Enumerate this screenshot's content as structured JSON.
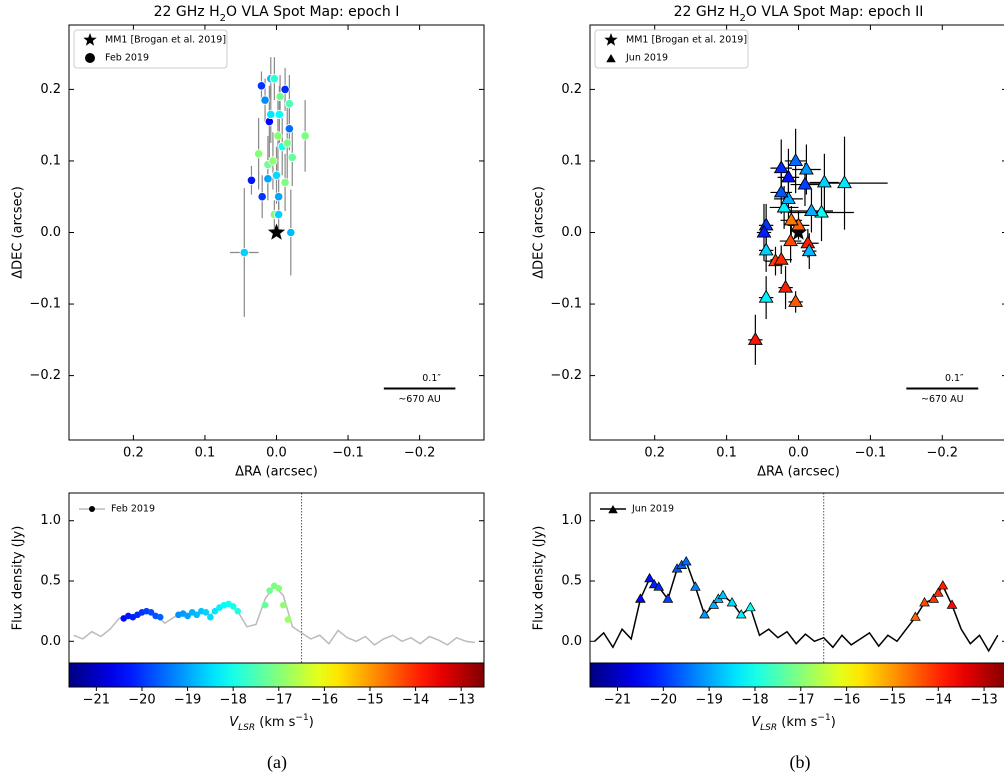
{
  "chart_data": [
    {
      "type": "scatter",
      "title": [
        "22 GHz H",
        "2",
        "O VLA Spot Map: epoch I"
      ],
      "xlabel": "ΔRA (arcsec)",
      "ylabel": "ΔDEC (arcsec)",
      "xlim": [
        0.29,
        -0.29
      ],
      "ylim": [
        -0.29,
        0.29
      ],
      "xticks": [
        0.2,
        0.1,
        {
          "value": 0,
          "label": "0.0"
        },
        {
          "value": -0.1,
          "label": "−0.1"
        },
        {
          "value": -0.2,
          "label": "−0.2"
        }
      ],
      "yticks": [
        {
          "value": -0.2,
          "label": "−0.2"
        },
        {
          "value": -0.1,
          "label": "−0.1"
        },
        {
          "value": 0,
          "label": "0.0"
        },
        0.1,
        0.2
      ],
      "legend": "upper left",
      "colormap": "jet",
      "clim": [
        -21.6,
        -12.5
      ],
      "series": [
        {
          "name": "MM1 [Brogan et al. 2019]",
          "marker": "star",
          "color": "#000000",
          "x": [
            0
          ],
          "y": [
            0
          ]
        },
        {
          "name": "Feb 2019",
          "marker": "circle",
          "errorbar_color": "#888888",
          "x": [
            0.045,
            0.035,
            0.021,
            0.016,
            0.008,
            0.003,
            -0.005,
            -0.012,
            -0.018,
            0.025,
            0.012,
            0.005,
            -0.002,
            -0.008,
            -0.015,
            -0.022,
            -0.04,
            0.01,
            -0.004,
            0.0,
            0.012,
            -0.012,
            0.02,
            -0.003,
            0.003,
            -0.003,
            -0.02,
            0.008,
            -0.018
          ],
          "y": [
            -0.028,
            0.073,
            0.205,
            0.185,
            0.215,
            0.215,
            0.19,
            0.2,
            0.18,
            0.11,
            0.095,
            0.1,
            0.135,
            0.12,
            0.125,
            0.105,
            0.135,
            0.155,
            0.165,
            0.08,
            0.075,
            0.07,
            0.05,
            0.05,
            0.025,
            0.025,
            0.0,
            0.165,
            0.145
          ],
          "velocity": [
            -18.6,
            -20.3,
            -20.0,
            -19.2,
            -18.8,
            -17.8,
            -17.2,
            -20.1,
            -17.5,
            -17.0,
            -17.2,
            -16.9,
            -17.0,
            -18.0,
            -17.1,
            -17.3,
            -17.1,
            -20.5,
            -18.2,
            -18.5,
            -19.0,
            -17.1,
            -20.0,
            -19.0,
            -17.0,
            -18.6,
            -18.8,
            -18.4,
            -19.5
          ],
          "x_err": [
            0.02,
            0.005,
            0.005,
            0.005,
            0.005,
            0.005,
            0.005,
            0.005,
            0.005,
            0.005,
            0.005,
            0.005,
            0.005,
            0.005,
            0.005,
            0.005,
            0.005,
            0.005,
            0.005,
            0.005,
            0.005,
            0.005,
            0.005,
            0.005,
            0.005,
            0.005,
            0.005,
            0.005,
            0.005
          ],
          "y_err": [
            0.09,
            0.02,
            0.02,
            0.03,
            0.03,
            0.03,
            0.03,
            0.03,
            0.04,
            0.05,
            0.04,
            0.04,
            0.05,
            0.04,
            0.05,
            0.04,
            0.05,
            0.05,
            0.04,
            0.04,
            0.03,
            0.04,
            0.03,
            0.03,
            0.02,
            0.02,
            0.06,
            0.04,
            0.03
          ]
        }
      ],
      "scale_bar": {
        "x": [
          -0.15,
          -0.25
        ],
        "y": -0.218,
        "label": "0.1″",
        "sublabel": "~670 AU"
      }
    },
    {
      "type": "line",
      "ylabel": "Flux density (Jy)",
      "xlim": [
        -21.6,
        -12.5
      ],
      "ylim": [
        -0.18,
        1.23
      ],
      "yticks": [
        {
          "value": 0,
          "label": "0.0"
        },
        0.5,
        {
          "value": 1,
          "label": "1.0"
        }
      ],
      "legend": "upper left",
      "vline": -16.5,
      "series": [
        {
          "name": "Feb 2019",
          "color": "#bbbbbb",
          "marker": "circle",
          "x": [
            -21.5,
            -21.3,
            -21.1,
            -20.9,
            -20.7,
            -20.5,
            -20.3,
            -20.1,
            -19.9,
            -19.7,
            -19.5,
            -19.3,
            -19.1,
            -18.9,
            -18.7,
            -18.5,
            -18.3,
            -18.1,
            -17.9,
            -17.7,
            -17.5,
            -17.3,
            -17.1,
            -16.9,
            -16.7,
            -16.5,
            -16.3,
            -16.1,
            -15.9,
            -15.7,
            -15.5,
            -15.3,
            -15.1,
            -14.9,
            -14.7,
            -14.5,
            -14.3,
            -14.1,
            -13.9,
            -13.7,
            -13.5,
            -13.3,
            -13.1,
            -12.9,
            -12.7
          ],
          "values": [
            0.05,
            0.02,
            0.08,
            0.04,
            0.1,
            0.19,
            0.21,
            0.2,
            0.24,
            0.22,
            0.15,
            0.2,
            0.22,
            0.23,
            0.24,
            0.22,
            0.28,
            0.3,
            0.25,
            0.12,
            0.14,
            0.35,
            0.46,
            0.38,
            0.12,
            0.07,
            0.02,
            0.05,
            -0.02,
            0.09,
            0.03,
            0.0,
            0.04,
            -0.03,
            0.02,
            0.05,
            0.0,
            0.03,
            -0.02,
            0.04,
            0.01,
            -0.03,
            0.03,
            0.0,
            -0.01
          ]
        }
      ],
      "spots": {
        "x": [
          -20.4,
          -20.3,
          -20.2,
          -20.1,
          -20.0,
          -19.9,
          -19.8,
          -19.7,
          -19.6,
          -19.2,
          -19.1,
          -19.0,
          -18.9,
          -18.8,
          -18.7,
          -18.6,
          -18.5,
          -18.4,
          -18.3,
          -18.2,
          -18.1,
          -18.0,
          -17.9,
          -17.3,
          -17.2,
          -17.1,
          -17.0,
          -16.9,
          -16.8
        ],
        "values": [
          0.19,
          0.21,
          0.2,
          0.22,
          0.24,
          0.25,
          0.24,
          0.21,
          0.2,
          0.22,
          0.23,
          0.21,
          0.24,
          0.22,
          0.25,
          0.24,
          0.2,
          0.25,
          0.28,
          0.3,
          0.31,
          0.29,
          0.25,
          0.3,
          0.42,
          0.46,
          0.44,
          0.3,
          0.18
        ]
      },
      "colorbar": {
        "colormap": "jet",
        "clim": [
          -21.6,
          -12.5
        ],
        "label": [
          "V",
          "LSR",
          " (km s",
          "−1",
          ")"
        ],
        "ticks": [
          {
            "value": -21,
            "label": "−21"
          },
          {
            "value": -20,
            "label": "−20"
          },
          {
            "value": -19,
            "label": "−19"
          },
          {
            "value": -18,
            "label": "−18"
          },
          {
            "value": -17,
            "label": "−17"
          },
          {
            "value": -16,
            "label": "−16"
          },
          {
            "value": -15,
            "label": "−15"
          },
          {
            "value": -14,
            "label": "−14"
          },
          {
            "value": -13,
            "label": "−13"
          }
        ]
      }
    },
    {
      "type": "scatter",
      "title": [
        "22 GHz H",
        "2",
        "O VLA Spot Map: epoch II"
      ],
      "xlabel": "ΔRA (arcsec)",
      "ylabel": "ΔDEC (arcsec)",
      "xlim": [
        0.29,
        -0.29
      ],
      "ylim": [
        -0.29,
        0.29
      ],
      "xticks": [
        0.2,
        0.1,
        {
          "value": 0,
          "label": "0.0"
        },
        {
          "value": -0.1,
          "label": "−0.1"
        },
        {
          "value": -0.2,
          "label": "−0.2"
        }
      ],
      "yticks": [
        {
          "value": -0.2,
          "label": "−0.2"
        },
        {
          "value": -0.1,
          "label": "−0.1"
        },
        {
          "value": 0,
          "label": "0.0"
        },
        0.1,
        0.2
      ],
      "legend": "upper left",
      "colormap": "jet",
      "clim": [
        -21.6,
        -12.5
      ],
      "series": [
        {
          "name": "MM1 [Brogan et al. 2019]",
          "marker": "star",
          "color": "#000000",
          "x": [
            0
          ],
          "y": [
            0
          ]
        },
        {
          "name": "Jun 2019",
          "marker": "triangle",
          "errorbar_color": "#000000",
          "x": [
            0.06,
            0.018,
            0.045,
            0.004,
            0.045,
            0.048,
            0.032,
            0.024,
            0.045,
            0.011,
            0.0,
            -0.013,
            -0.015,
            0.02,
            0.014,
            0.024,
            0.014,
            0.024,
            0.004,
            -0.009,
            -0.011,
            -0.036,
            -0.064,
            -0.032,
            -0.018,
            0.01
          ],
          "y": [
            -0.15,
            -0.077,
            -0.091,
            -0.097,
            0.01,
            0.0,
            -0.04,
            -0.038,
            -0.025,
            -0.012,
            0.01,
            -0.015,
            -0.026,
            0.035,
            0.047,
            0.056,
            0.077,
            0.09,
            0.1,
            0.067,
            0.088,
            0.07,
            0.069,
            0.028,
            0.03,
            0.017
          ],
          "velocity": [
            -13.8,
            -13.9,
            -18.3,
            -14.4,
            -20.0,
            -20.2,
            -14.2,
            -14.0,
            -18.6,
            -14.3,
            -14.5,
            -13.9,
            -18.8,
            -18.3,
            -18.9,
            -19.7,
            -20.3,
            -20.1,
            -19.5,
            -19.9,
            -19.1,
            -18.6,
            -18.4,
            -18.1,
            -18.9,
            -14.7
          ],
          "x_err": [
            0.01,
            0.01,
            0.01,
            0.01,
            0.01,
            0.01,
            0.015,
            0.015,
            0.01,
            0.015,
            0.015,
            0.015,
            0.01,
            0.02,
            0.02,
            0.015,
            0.015,
            0.015,
            0.015,
            0.02,
            0.02,
            0.02,
            0.06,
            0.045,
            0.03,
            0.015
          ],
          "y_err": [
            0.035,
            0.03,
            0.03,
            0.015,
            0.03,
            0.04,
            0.02,
            0.02,
            0.03,
            0.03,
            0.02,
            0.02,
            0.025,
            0.03,
            0.03,
            0.03,
            0.04,
            0.04,
            0.045,
            0.03,
            0.035,
            0.04,
            0.065,
            0.04,
            0.03,
            0.02
          ]
        }
      ],
      "scale_bar": {
        "x": [
          -0.15,
          -0.25
        ],
        "y": -0.218,
        "label": "0.1″",
        "sublabel": "~670 AU"
      }
    },
    {
      "type": "line",
      "ylabel": "Flux density (Jy)",
      "xlim": [
        -21.6,
        -12.5
      ],
      "ylim": [
        -0.18,
        1.23
      ],
      "yticks": [
        {
          "value": 0,
          "label": "0.0"
        },
        0.5,
        {
          "value": 1,
          "label": "1.0"
        }
      ],
      "legend": "upper left",
      "vline": -16.5,
      "series": [
        {
          "name": "Jun 2019",
          "color": "#000000",
          "marker": "triangle",
          "x": [
            -21.5,
            -21.3,
            -21.1,
            -20.9,
            -20.7,
            -20.5,
            -20.3,
            -20.1,
            -19.9,
            -19.7,
            -19.5,
            -19.3,
            -19.1,
            -18.9,
            -18.7,
            -18.5,
            -18.3,
            -18.1,
            -17.9,
            -17.7,
            -17.5,
            -17.3,
            -17.1,
            -16.9,
            -16.7,
            -16.5,
            -16.3,
            -16.1,
            -15.9,
            -15.7,
            -15.5,
            -15.3,
            -15.1,
            -14.9,
            -14.7,
            -14.5,
            -14.3,
            -14.1,
            -13.9,
            -13.7,
            -13.5,
            -13.3,
            -13.1,
            -12.9,
            -12.7
          ],
          "values": [
            0.0,
            0.07,
            -0.05,
            0.1,
            0.02,
            0.35,
            0.52,
            0.45,
            0.35,
            0.6,
            0.66,
            0.45,
            0.22,
            0.3,
            0.38,
            0.32,
            0.22,
            0.28,
            0.05,
            0.1,
            0.03,
            0.08,
            -0.02,
            0.06,
            0.0,
            0.03,
            -0.05,
            0.05,
            -0.03,
            0.02,
            0.07,
            -0.04,
            0.05,
            0.0,
            0.1,
            0.2,
            0.32,
            0.35,
            0.46,
            0.3,
            0.1,
            -0.02,
            0.05,
            -0.08,
            0.05
          ]
        }
      ],
      "spots": {
        "x": [
          -20.5,
          -20.3,
          -20.2,
          -20.1,
          -19.9,
          -19.7,
          -19.6,
          -19.5,
          -19.3,
          -19.1,
          -18.9,
          -18.8,
          -18.7,
          -18.5,
          -18.3,
          -18.1,
          -14.5,
          -14.3,
          -14.1,
          -14.0,
          -13.9,
          -13.7
        ],
        "values": [
          0.35,
          0.52,
          0.47,
          0.45,
          0.35,
          0.6,
          0.63,
          0.66,
          0.45,
          0.22,
          0.3,
          0.35,
          0.38,
          0.32,
          0.22,
          0.28,
          0.2,
          0.32,
          0.35,
          0.4,
          0.46,
          0.3
        ]
      },
      "colorbar": {
        "colormap": "jet",
        "clim": [
          -21.6,
          -12.5
        ],
        "label": [
          "V",
          "LSR",
          " (km s",
          "−1",
          ")"
        ],
        "ticks": [
          {
            "value": -21,
            "label": "−21"
          },
          {
            "value": -20,
            "label": "−20"
          },
          {
            "value": -19,
            "label": "−19"
          },
          {
            "value": -18,
            "label": "−18"
          },
          {
            "value": -17,
            "label": "−17"
          },
          {
            "value": -16,
            "label": "−16"
          },
          {
            "value": -15,
            "label": "−15"
          },
          {
            "value": -14,
            "label": "−14"
          },
          {
            "value": -13,
            "label": "−13"
          }
        ]
      }
    }
  ],
  "captions": [
    "(a)",
    "(b)"
  ]
}
